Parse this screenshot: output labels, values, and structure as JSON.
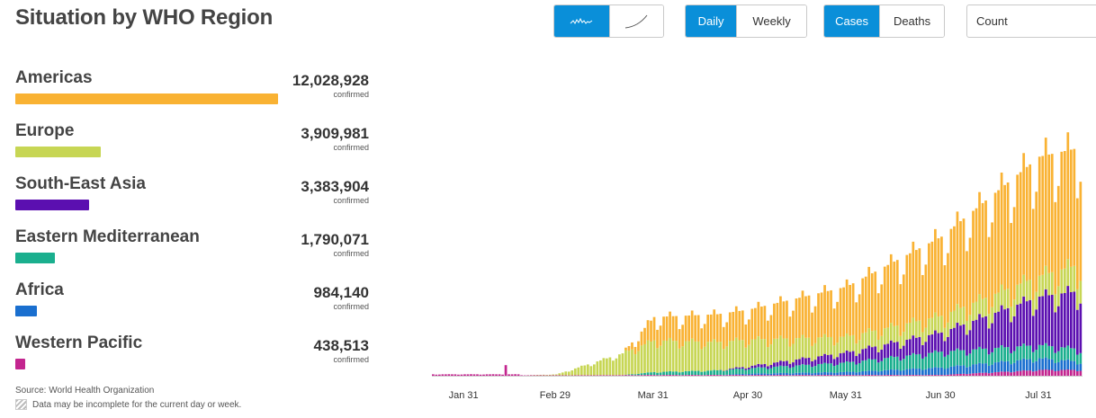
{
  "title": "Situation by WHO Region",
  "controls": {
    "scale_buttons": [
      {
        "icon": "linear-scale-icon",
        "active": true
      },
      {
        "icon": "log-scale-icon",
        "active": false
      }
    ],
    "period_buttons": [
      {
        "label": "Daily",
        "active": true
      },
      {
        "label": "Weekly",
        "active": false
      }
    ],
    "metric_buttons": [
      {
        "label": "Cases",
        "active": true
      },
      {
        "label": "Deaths",
        "active": false
      }
    ],
    "count_select": "Count"
  },
  "regions": [
    {
      "name": "Americas",
      "value": "12,028,928",
      "sub": "confirmed",
      "color": "#f9b233",
      "share": 1.0
    },
    {
      "name": "Europe",
      "value": "3,909,981",
      "sub": "confirmed",
      "color": "#c7d654",
      "share": 0.325
    },
    {
      "name": "South-East Asia",
      "value": "3,383,904",
      "sub": "confirmed",
      "color": "#5b0fb0",
      "share": 0.281
    },
    {
      "name": "Eastern Mediterranean",
      "value": "1,790,071",
      "sub": "confirmed",
      "color": "#1aaf8e",
      "share": 0.149
    },
    {
      "name": "Africa",
      "value": "984,140",
      "sub": "confirmed",
      "color": "#1a6fcf",
      "share": 0.082
    },
    {
      "name": "Western Pacific",
      "value": "438,513",
      "sub": "confirmed",
      "color": "#c3258f",
      "share": 0.036
    }
  ],
  "footer": {
    "source": "Source: World Health Organization",
    "note": "Data may be incomplete for the current day or week."
  },
  "chart_data": {
    "type": "bar",
    "stacked": true,
    "x_tick_labels": [
      "Jan 31",
      "Feb 29",
      "Mar 31",
      "Apr 30",
      "May 31",
      "Jun 30",
      "Jul 31"
    ],
    "legend": "none",
    "grid": false,
    "ylim": [
      0,
      300000
    ],
    "key_points": [
      {
        "date": "Jan 31",
        "Western Pacific": 1700
      },
      {
        "date": "Feb 13",
        "Western Pacific": 15000
      },
      {
        "date": "Feb 29",
        "Western Pacific": 500,
        "Europe": 1000
      },
      {
        "date": "Mar 31",
        "Americas": 28000,
        "Europe": 38000,
        "Eastern Mediterranean": 3500,
        "Western Pacific": 1000
      },
      {
        "date": "Apr 30",
        "Americas": 36000,
        "Europe": 32000,
        "South-East Asia": 2500,
        "Eastern Mediterranean": 6500,
        "Africa": 1500,
        "Western Pacific": 1000
      },
      {
        "date": "May 31",
        "Americas": 60000,
        "Europe": 19000,
        "South-East Asia": 12000,
        "Eastern Mediterranean": 11500,
        "Africa": 3500,
        "Western Pacific": 1000
      },
      {
        "date": "Jun 30",
        "Americas": 95000,
        "Europe": 20000,
        "South-East Asia": 23000,
        "Eastern Mediterranean": 19000,
        "Africa": 9000,
        "Western Pacific": 1000
      },
      {
        "date": "Jul 31",
        "Americas": 143000,
        "Europe": 25000,
        "South-East Asia": 58000,
        "Eastern Mediterranean": 16000,
        "Africa": 14000,
        "Western Pacific": 7000
      },
      {
        "date": "Aug 13",
        "Americas": 140000,
        "Europe": 32000,
        "South-East Asia": 70000,
        "Eastern Mediterranean": 15000,
        "Africa": 10000,
        "Western Pacific": 7000
      }
    ]
  }
}
